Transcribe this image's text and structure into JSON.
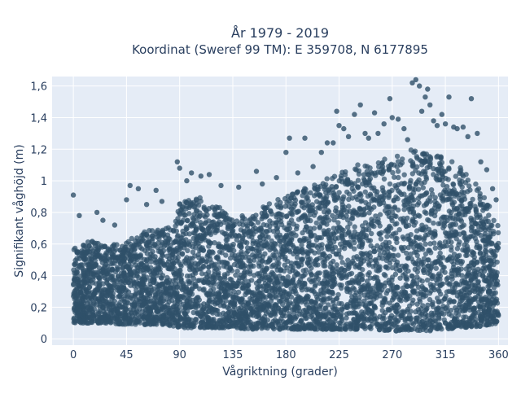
{
  "chart_data": {
    "type": "scatter",
    "title": "År 1979 - 2019",
    "subtitle": "Koordinat (Sweref 99 TM): E 359708, N 6177895",
    "xlabel": "Vågriktning (grader)",
    "ylabel": "Signifikant våghöjd (m)",
    "xlim": [
      -18,
      368
    ],
    "ylim": [
      -0.04,
      1.66
    ],
    "x_ticks": [
      0,
      45,
      90,
      135,
      180,
      225,
      270,
      315,
      360
    ],
    "x_tick_labels": [
      "0",
      "45",
      "90",
      "135",
      "180",
      "225",
      "270",
      "315",
      "360"
    ],
    "y_ticks": [
      0,
      0.2,
      0.4,
      0.6,
      0.8,
      1.0,
      1.2,
      1.4,
      1.6
    ],
    "y_tick_labels": [
      "0",
      "0,2",
      "0,4",
      "0,6",
      "0,8",
      "1",
      "1,2",
      "1,4",
      "1,6"
    ],
    "grid": true,
    "marker_color": "#2f5069",
    "plot_background": "#e5ecf6",
    "envelope": {
      "x": [
        0,
        15,
        30,
        45,
        60,
        75,
        85,
        90,
        105,
        120,
        135,
        150,
        165,
        180,
        195,
        210,
        225,
        240,
        255,
        270,
        285,
        300,
        315,
        330,
        345,
        360
      ],
      "lower": [
        0.1,
        0.1,
        0.1,
        0.09,
        0.09,
        0.09,
        0.08,
        0.07,
        0.07,
        0.07,
        0.07,
        0.06,
        0.06,
        0.06,
        0.06,
        0.06,
        0.06,
        0.06,
        0.06,
        0.05,
        0.05,
        0.05,
        0.06,
        0.07,
        0.08,
        0.1
      ],
      "upper": [
        0.58,
        0.62,
        0.6,
        0.62,
        0.68,
        0.7,
        0.72,
        0.86,
        0.9,
        0.85,
        0.78,
        0.78,
        0.86,
        0.9,
        0.95,
        1.0,
        1.05,
        1.1,
        1.12,
        1.15,
        1.2,
        1.18,
        1.15,
        1.08,
        0.95,
        0.72
      ]
    },
    "outliers": [
      {
        "x": 0,
        "y": 0.91
      },
      {
        "x": 5,
        "y": 0.78
      },
      {
        "x": 20,
        "y": 0.8
      },
      {
        "x": 25,
        "y": 0.75
      },
      {
        "x": 35,
        "y": 0.72
      },
      {
        "x": 45,
        "y": 0.88
      },
      {
        "x": 48,
        "y": 0.97
      },
      {
        "x": 55,
        "y": 0.95
      },
      {
        "x": 62,
        "y": 0.85
      },
      {
        "x": 70,
        "y": 0.94
      },
      {
        "x": 75,
        "y": 0.87
      },
      {
        "x": 88,
        "y": 1.12
      },
      {
        "x": 90,
        "y": 1.08
      },
      {
        "x": 96,
        "y": 1.0
      },
      {
        "x": 100,
        "y": 1.05
      },
      {
        "x": 108,
        "y": 1.03
      },
      {
        "x": 115,
        "y": 1.04
      },
      {
        "x": 125,
        "y": 0.97
      },
      {
        "x": 140,
        "y": 0.96
      },
      {
        "x": 155,
        "y": 1.06
      },
      {
        "x": 160,
        "y": 0.98
      },
      {
        "x": 172,
        "y": 1.02
      },
      {
        "x": 180,
        "y": 1.18
      },
      {
        "x": 183,
        "y": 1.27
      },
      {
        "x": 190,
        "y": 1.05
      },
      {
        "x": 196,
        "y": 1.27
      },
      {
        "x": 203,
        "y": 1.09
      },
      {
        "x": 210,
        "y": 1.18
      },
      {
        "x": 215,
        "y": 1.24
      },
      {
        "x": 220,
        "y": 1.24
      },
      {
        "x": 223,
        "y": 1.44
      },
      {
        "x": 225,
        "y": 1.35
      },
      {
        "x": 229,
        "y": 1.33
      },
      {
        "x": 233,
        "y": 1.28
      },
      {
        "x": 238,
        "y": 1.42
      },
      {
        "x": 243,
        "y": 1.48
      },
      {
        "x": 247,
        "y": 1.3
      },
      {
        "x": 250,
        "y": 1.27
      },
      {
        "x": 255,
        "y": 1.43
      },
      {
        "x": 258,
        "y": 1.3
      },
      {
        "x": 263,
        "y": 1.36
      },
      {
        "x": 268,
        "y": 1.52
      },
      {
        "x": 270,
        "y": 1.4
      },
      {
        "x": 275,
        "y": 1.39
      },
      {
        "x": 280,
        "y": 1.33
      },
      {
        "x": 283,
        "y": 1.26
      },
      {
        "x": 287,
        "y": 1.62
      },
      {
        "x": 290,
        "y": 1.64
      },
      {
        "x": 293,
        "y": 1.6
      },
      {
        "x": 295,
        "y": 1.44
      },
      {
        "x": 298,
        "y": 1.53
      },
      {
        "x": 300,
        "y": 1.58
      },
      {
        "x": 302,
        "y": 1.48
      },
      {
        "x": 305,
        "y": 1.38
      },
      {
        "x": 308,
        "y": 1.35
      },
      {
        "x": 312,
        "y": 1.42
      },
      {
        "x": 315,
        "y": 1.36
      },
      {
        "x": 318,
        "y": 1.53
      },
      {
        "x": 322,
        "y": 1.34
      },
      {
        "x": 325,
        "y": 1.33
      },
      {
        "x": 330,
        "y": 1.34
      },
      {
        "x": 334,
        "y": 1.28
      },
      {
        "x": 337,
        "y": 1.52
      },
      {
        "x": 342,
        "y": 1.3
      },
      {
        "x": 345,
        "y": 1.12
      },
      {
        "x": 350,
        "y": 1.07
      },
      {
        "x": 355,
        "y": 0.95
      },
      {
        "x": 358,
        "y": 0.88
      }
    ]
  }
}
